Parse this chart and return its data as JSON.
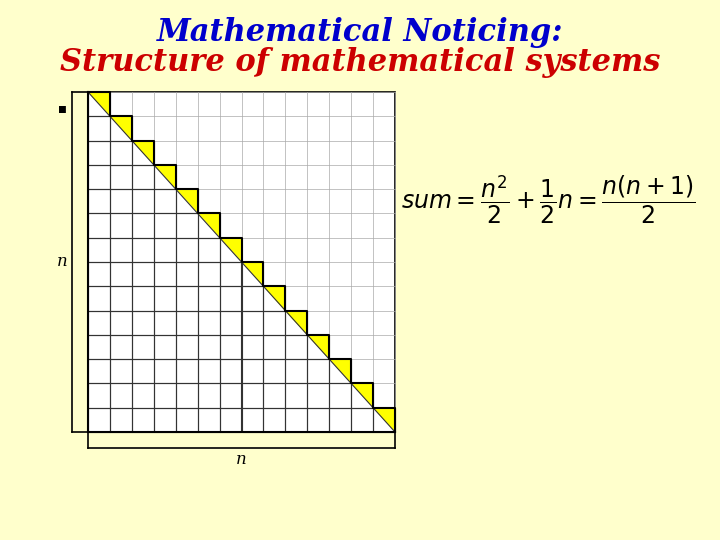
{
  "bg_color": "#FFFFCC",
  "title_line1": "Mathematical Noticing:",
  "title_line2": "Structure of mathematical systems",
  "title_color1": "#0000CC",
  "title_color2": "#CC0000",
  "title_fontsize": 22,
  "grid_n": 14,
  "grid_color": "#AAAAAA",
  "grid_lw": 0.5,
  "cell_line_color": "#333333",
  "cell_line_lw": 0.8,
  "yellow_color": "#FFFF00",
  "white_color": "#FFFFFF",
  "formula_fontsize": 17
}
